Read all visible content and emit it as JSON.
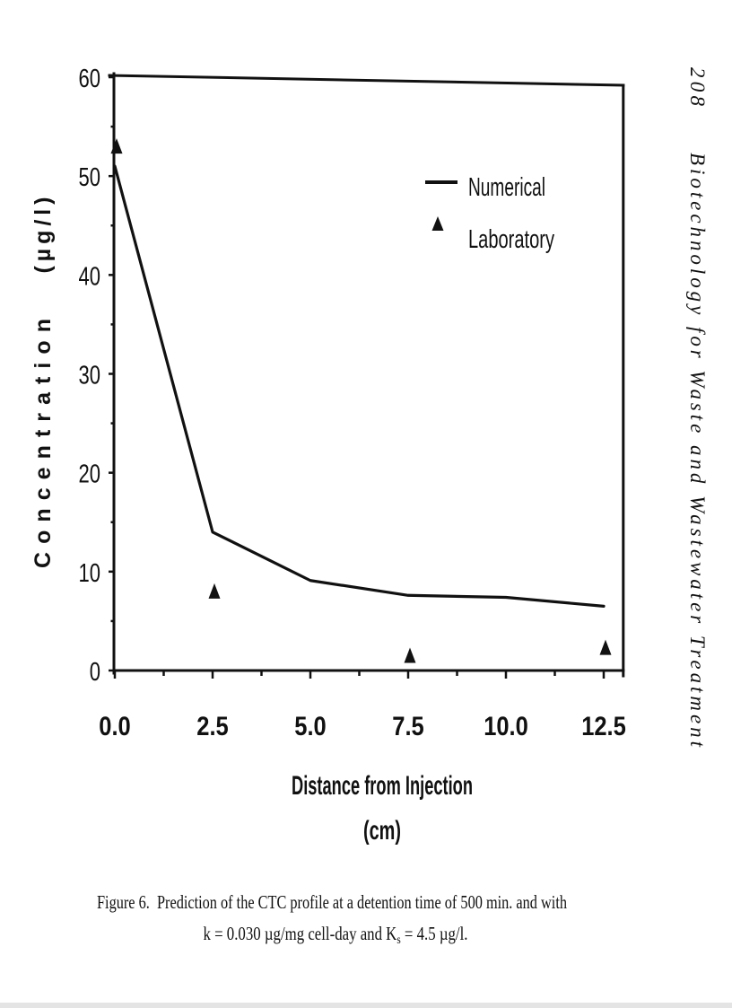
{
  "page": {
    "header": {
      "page_number": "208",
      "running_title": "Biotechnology for Waste and Wastewater Treatment"
    },
    "caption": {
      "line1": "Figure 6.  Prediction of the CTC profile at a detention time of 500 min. and with",
      "line2_pre": "k = 0.030 µg/mg cell-day and K",
      "line2_sub": "s",
      "line2_post": " = 4.5 µg/l."
    },
    "colors": {
      "ink": "#111111",
      "paper": "#ffffff"
    }
  },
  "chart_data": {
    "type": "line",
    "xlabel": "Distance from Injection",
    "xlabel_unit": "(cm)",
    "ylabel": "Concentration",
    "ylabel_unit": "(µg/l)",
    "xlim": [
      0,
      13
    ],
    "ylim": [
      0,
      60
    ],
    "x_ticks": [
      0,
      2.5,
      5,
      7.5,
      10,
      12.5
    ],
    "x_tick_labels": [
      "0.0",
      "2.5",
      "5.0",
      "7.5",
      "10.0",
      "12.5"
    ],
    "x_minor_step": 1.25,
    "y_ticks": [
      0,
      10,
      20,
      30,
      40,
      50,
      60
    ],
    "y_tick_labels": [
      "0",
      "10",
      "20",
      "30",
      "40",
      "50",
      "60"
    ],
    "y_minor_step": 5,
    "grid": false,
    "legend": "top-right",
    "series": [
      {
        "name": "Numerical",
        "color": "#000000",
        "x": [
          0,
          2.5,
          5,
          7.5,
          10,
          12.5
        ],
        "y": [
          51,
          14,
          9.1,
          7.6,
          7.4,
          6.5
        ]
      },
      {
        "name": "Laboratory",
        "color": "#000000",
        "marker": "triangle",
        "x": [
          0,
          2.5,
          7.5,
          12.5
        ],
        "y": [
          53,
          8,
          1.5,
          2.3
        ]
      }
    ]
  }
}
